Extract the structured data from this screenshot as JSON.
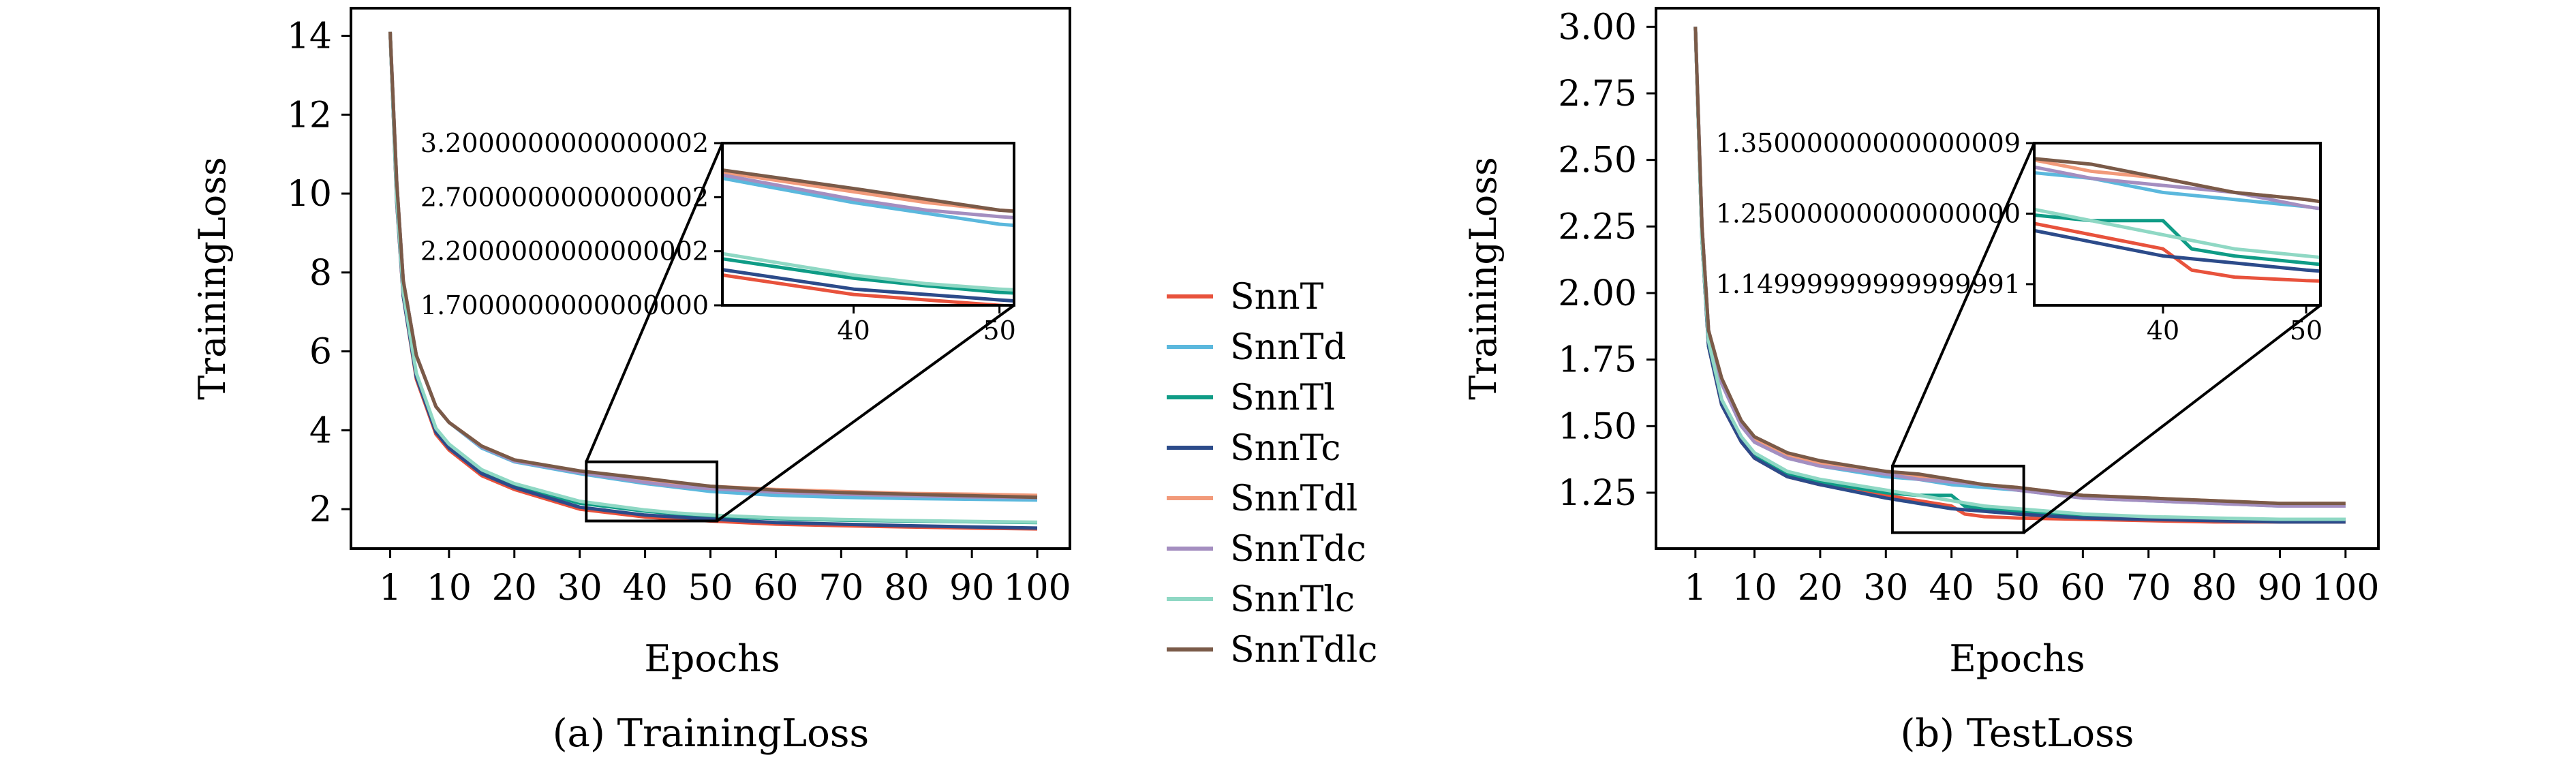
{
  "colors": {
    "SnnT": "#e8523c",
    "SnnTd": "#5bb8dd",
    "SnnTl": "#0f9c86",
    "SnnTc": "#2c4b8a",
    "SnnTdl": "#f29a7a",
    "SnnTdc": "#a48ec0",
    "SnnTlc": "#8fd8c4",
    "SnnTdlc": "#7a5a48"
  },
  "legend": [
    "SnnT",
    "SnnTd",
    "SnnTl",
    "SnnTc",
    "SnnTdl",
    "SnnTdc",
    "SnnTlc",
    "SnnTdlc"
  ],
  "chart_data": [
    {
      "type": "line",
      "caption": "(a) TrainingLoss",
      "xlabel": "Epochs",
      "ylabel": "TrainingLoss",
      "xlim": [
        -5,
        105
      ],
      "ylim": [
        1.0,
        14.7
      ],
      "xticks": [
        1,
        10,
        20,
        30,
        40,
        50,
        60,
        70,
        80,
        90,
        100
      ],
      "yticks": [
        2,
        4,
        6,
        8,
        10,
        12,
        14
      ],
      "grid": false,
      "inset": {
        "xlim": [
          31,
          51
        ],
        "ylim": [
          1.7,
          3.2
        ],
        "xticks": [
          40,
          50
        ],
        "yticks": [
          1.7,
          2.2,
          2.7,
          3.2
        ],
        "box_ylim": [
          1.7,
          3.2
        ]
      },
      "series": [
        {
          "name": "SnnT",
          "x": [
            1,
            2,
            3,
            5,
            8,
            10,
            15,
            20,
            30,
            40,
            45,
            50,
            60,
            70,
            80,
            90,
            100
          ],
          "y": [
            14.1,
            9.8,
            7.4,
            5.3,
            3.9,
            3.5,
            2.85,
            2.5,
            2.0,
            1.8,
            1.75,
            1.7,
            1.62,
            1.58,
            1.55,
            1.52,
            1.5
          ]
        },
        {
          "name": "SnnTd",
          "x": [
            1,
            2,
            3,
            5,
            8,
            10,
            15,
            20,
            30,
            40,
            45,
            50,
            60,
            70,
            80,
            90,
            100
          ],
          "y": [
            14.1,
            10.3,
            7.8,
            5.9,
            4.6,
            4.2,
            3.55,
            3.2,
            2.9,
            2.65,
            2.55,
            2.45,
            2.35,
            2.3,
            2.27,
            2.25,
            2.23
          ]
        },
        {
          "name": "SnnTl",
          "x": [
            1,
            2,
            3,
            5,
            8,
            10,
            15,
            20,
            30,
            40,
            45,
            50,
            60,
            70,
            80,
            90,
            100
          ],
          "y": [
            14.1,
            9.9,
            7.5,
            5.4,
            4.0,
            3.6,
            2.95,
            2.6,
            2.15,
            1.95,
            1.88,
            1.82,
            1.76,
            1.72,
            1.7,
            1.68,
            1.66
          ]
        },
        {
          "name": "SnnTc",
          "x": [
            1,
            2,
            3,
            5,
            8,
            10,
            15,
            20,
            30,
            40,
            45,
            50,
            60,
            70,
            80,
            90,
            100
          ],
          "y": [
            14.1,
            9.8,
            7.4,
            5.35,
            3.95,
            3.55,
            2.9,
            2.55,
            2.05,
            1.85,
            1.8,
            1.75,
            1.66,
            1.62,
            1.58,
            1.55,
            1.52
          ]
        },
        {
          "name": "SnnTdl",
          "x": [
            1,
            2,
            3,
            5,
            8,
            10,
            15,
            20,
            30,
            40,
            45,
            50,
            60,
            70,
            80,
            90,
            100
          ],
          "y": [
            14.1,
            10.3,
            7.8,
            5.9,
            4.6,
            4.2,
            3.6,
            3.25,
            2.95,
            2.75,
            2.65,
            2.58,
            2.5,
            2.45,
            2.4,
            2.38,
            2.35
          ]
        },
        {
          "name": "SnnTdc",
          "x": [
            1,
            2,
            3,
            5,
            8,
            10,
            15,
            20,
            30,
            40,
            45,
            50,
            60,
            70,
            80,
            90,
            100
          ],
          "y": [
            14.1,
            10.3,
            7.8,
            5.9,
            4.6,
            4.2,
            3.58,
            3.22,
            2.93,
            2.68,
            2.58,
            2.52,
            2.43,
            2.38,
            2.34,
            2.31,
            2.29
          ]
        },
        {
          "name": "SnnTlc",
          "x": [
            1,
            2,
            3,
            5,
            8,
            10,
            15,
            20,
            30,
            40,
            45,
            50,
            60,
            70,
            80,
            90,
            100
          ],
          "y": [
            14.1,
            9.9,
            7.5,
            5.45,
            4.05,
            3.65,
            3.0,
            2.65,
            2.2,
            1.98,
            1.9,
            1.85,
            1.78,
            1.74,
            1.71,
            1.69,
            1.67
          ]
        },
        {
          "name": "SnnTdlc",
          "x": [
            1,
            2,
            3,
            5,
            8,
            10,
            15,
            20,
            30,
            40,
            45,
            50,
            60,
            70,
            80,
            90,
            100
          ],
          "y": [
            14.1,
            10.3,
            7.8,
            5.9,
            4.6,
            4.2,
            3.6,
            3.25,
            2.97,
            2.78,
            2.68,
            2.58,
            2.48,
            2.42,
            2.38,
            2.34,
            2.3
          ]
        }
      ]
    },
    {
      "type": "line",
      "caption": "(b) TestLoss",
      "xlabel": "Epochs",
      "ylabel": "TrainingLoss",
      "xlim": [
        -5,
        105
      ],
      "ylim": [
        1.04,
        3.07
      ],
      "xticks": [
        1,
        10,
        20,
        30,
        40,
        50,
        60,
        70,
        80,
        90,
        100
      ],
      "yticks": [
        1.25,
        1.5,
        1.75,
        2.0,
        2.25,
        2.5,
        2.75,
        3.0
      ],
      "grid": false,
      "inset": {
        "xlim": [
          31,
          51
        ],
        "ylim": [
          1.12,
          1.35
        ],
        "xticks": [
          40,
          50
        ],
        "yticks": [
          1.15,
          1.25,
          1.35
        ],
        "box_ylim": [
          1.1,
          1.35
        ]
      },
      "series": [
        {
          "name": "SnnT",
          "x": [
            1,
            2,
            3,
            5,
            8,
            10,
            15,
            20,
            30,
            35,
            40,
            42,
            45,
            50,
            60,
            70,
            80,
            90,
            100
          ],
          "y": [
            3.0,
            2.2,
            1.8,
            1.58,
            1.44,
            1.38,
            1.31,
            1.28,
            1.24,
            1.22,
            1.2,
            1.17,
            1.16,
            1.155,
            1.15,
            1.145,
            1.14,
            1.14,
            1.14
          ]
        },
        {
          "name": "SnnTd",
          "x": [
            1,
            2,
            3,
            5,
            8,
            10,
            15,
            20,
            30,
            35,
            40,
            45,
            50,
            60,
            70,
            80,
            90,
            100
          ],
          "y": [
            3.0,
            2.25,
            1.86,
            1.66,
            1.5,
            1.44,
            1.38,
            1.35,
            1.31,
            1.3,
            1.28,
            1.27,
            1.26,
            1.23,
            1.22,
            1.21,
            1.2,
            1.2
          ]
        },
        {
          "name": "SnnTl",
          "x": [
            1,
            2,
            3,
            5,
            8,
            10,
            15,
            20,
            30,
            35,
            40,
            42,
            45,
            50,
            60,
            70,
            80,
            90,
            100
          ],
          "y": [
            3.0,
            2.2,
            1.8,
            1.59,
            1.45,
            1.39,
            1.32,
            1.29,
            1.25,
            1.24,
            1.24,
            1.2,
            1.19,
            1.18,
            1.16,
            1.155,
            1.15,
            1.15,
            1.15
          ]
        },
        {
          "name": "SnnTc",
          "x": [
            1,
            2,
            3,
            5,
            8,
            10,
            15,
            20,
            30,
            35,
            40,
            45,
            50,
            60,
            70,
            80,
            90,
            100
          ],
          "y": [
            3.0,
            2.2,
            1.8,
            1.58,
            1.44,
            1.38,
            1.31,
            1.28,
            1.23,
            1.21,
            1.19,
            1.18,
            1.17,
            1.155,
            1.15,
            1.145,
            1.14,
            1.14
          ]
        },
        {
          "name": "SnnTdl",
          "x": [
            1,
            2,
            3,
            5,
            8,
            10,
            15,
            20,
            30,
            35,
            40,
            45,
            50,
            60,
            70,
            80,
            90,
            100
          ],
          "y": [
            3.0,
            2.25,
            1.86,
            1.67,
            1.51,
            1.45,
            1.39,
            1.36,
            1.33,
            1.31,
            1.3,
            1.28,
            1.27,
            1.24,
            1.23,
            1.22,
            1.21,
            1.21
          ]
        },
        {
          "name": "SnnTdc",
          "x": [
            1,
            2,
            3,
            5,
            8,
            10,
            15,
            20,
            30,
            35,
            40,
            45,
            50,
            60,
            70,
            80,
            90,
            100
          ],
          "y": [
            3.0,
            2.25,
            1.86,
            1.66,
            1.5,
            1.44,
            1.38,
            1.35,
            1.32,
            1.3,
            1.29,
            1.28,
            1.26,
            1.23,
            1.22,
            1.21,
            1.2,
            1.2
          ]
        },
        {
          "name": "SnnTlc",
          "x": [
            1,
            2,
            3,
            5,
            8,
            10,
            15,
            20,
            30,
            35,
            40,
            45,
            50,
            60,
            70,
            80,
            90,
            100
          ],
          "y": [
            3.0,
            2.2,
            1.82,
            1.6,
            1.46,
            1.4,
            1.33,
            1.3,
            1.26,
            1.24,
            1.22,
            1.2,
            1.19,
            1.17,
            1.16,
            1.155,
            1.15,
            1.15
          ]
        },
        {
          "name": "SnnTdlc",
          "x": [
            1,
            2,
            3,
            5,
            8,
            10,
            15,
            20,
            30,
            35,
            40,
            45,
            50,
            60,
            70,
            80,
            90,
            100
          ],
          "y": [
            3.0,
            2.25,
            1.86,
            1.68,
            1.52,
            1.46,
            1.4,
            1.37,
            1.33,
            1.32,
            1.3,
            1.28,
            1.27,
            1.24,
            1.23,
            1.22,
            1.21,
            1.21
          ]
        }
      ]
    }
  ]
}
